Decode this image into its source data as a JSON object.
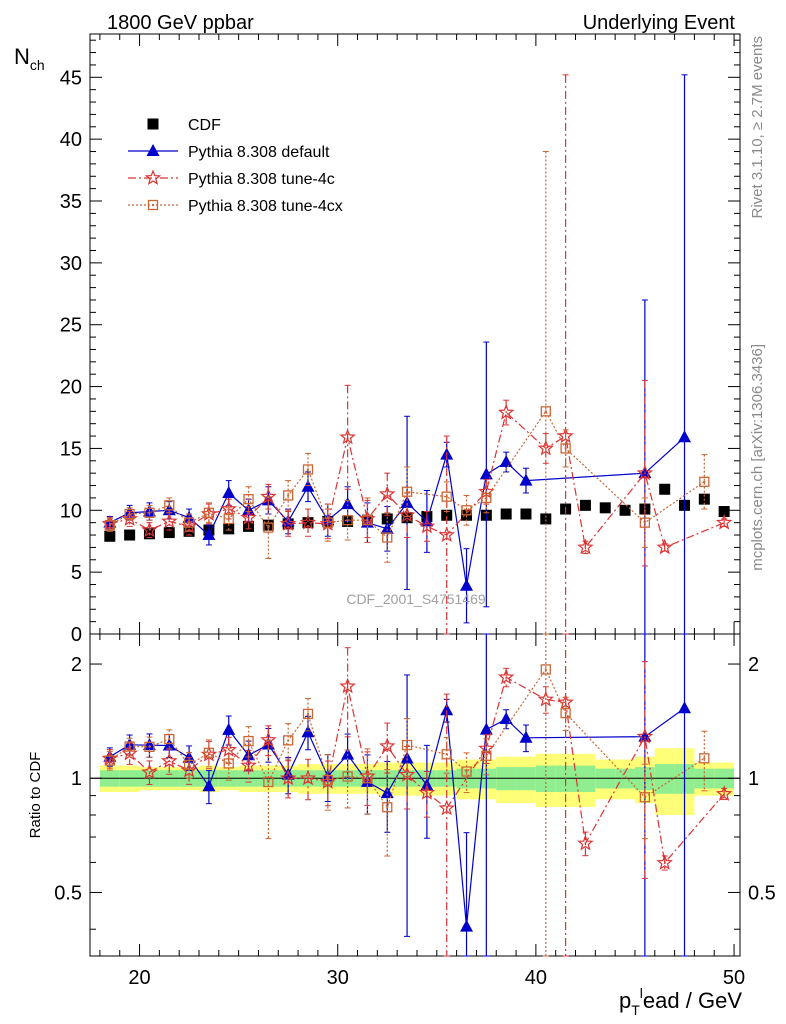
{
  "header": {
    "left": "1800 GeV ppbar",
    "right": "Underlying Event"
  },
  "side_labels": {
    "rivet": "Rivet 3.1.10, ≥ 2.7M events",
    "mcplots": "mcplots.cern.ch [arXiv:1306.3436]"
  },
  "watermark": "CDF_2001_S4751469",
  "colors": {
    "cdf": "#000000",
    "default": "#0000cc",
    "tune4c": "#dd3333",
    "tune4cx": "#cc6633",
    "band_green": "#90ee90",
    "band_yellow": "#ffff77"
  },
  "chart_data": [
    {
      "type": "scatter",
      "panel": "main",
      "ylabel": "N",
      "ylabel_sub": "ch",
      "xlim": [
        17.5,
        50.3
      ],
      "ylim": [
        0,
        48.5
      ],
      "y_ticks": [
        "0",
        "5",
        "10",
        "15",
        "20",
        "25",
        "30",
        "35",
        "40",
        "45"
      ],
      "legend_position": "top-left",
      "series": [
        {
          "name": "CDF",
          "x": [
            18.5,
            19.5,
            20.5,
            21.5,
            22.5,
            23.5,
            24.5,
            25.5,
            26.5,
            27.5,
            28.5,
            29.5,
            30.5,
            31.5,
            32.5,
            33.5,
            34.5,
            35.5,
            36.5,
            37.5,
            38.5,
            39.5,
            40.5,
            41.5,
            42.5,
            43.5,
            44.5,
            45.5,
            46.5,
            47.5,
            48.5,
            49.5
          ],
          "y": [
            7.9,
            8.0,
            8.1,
            8.2,
            8.3,
            8.4,
            8.5,
            8.7,
            8.8,
            8.9,
            9.0,
            9.1,
            9.1,
            9.2,
            9.3,
            9.4,
            9.5,
            9.6,
            9.6,
            9.6,
            9.7,
            9.7,
            9.3,
            10.1,
            10.4,
            10.2,
            10.0,
            10.1,
            11.7,
            10.4,
            10.9,
            9.9
          ]
        },
        {
          "name": "Pythia 8.308 default",
          "x": [
            18.5,
            19.5,
            20.5,
            21.5,
            22.5,
            23.5,
            24.5,
            25.5,
            26.5,
            27.5,
            28.5,
            29.5,
            30.5,
            31.5,
            32.5,
            33.5,
            34.5,
            35.5,
            36.5,
            37.5,
            38.5,
            39.5,
            45.5,
            47.5
          ],
          "y": [
            9.0,
            9.8,
            9.9,
            10.0,
            9.4,
            8.0,
            11.4,
            10.0,
            10.8,
            9.1,
            11.9,
            9.2,
            10.5,
            9.0,
            8.5,
            10.6,
            9.1,
            14.5,
            3.9,
            12.9,
            13.9,
            12.4,
            13.0,
            15.9
          ],
          "err": [
            0.5,
            0.6,
            0.7,
            0.7,
            0.7,
            0.8,
            1.0,
            0.9,
            1.1,
            1.0,
            1.2,
            1.3,
            1.4,
            1.6,
            1.8,
            7.0,
            2.5,
            1.0,
            3.0,
            10.7,
            0.8,
            1.0,
            14.0,
            29.3
          ]
        },
        {
          "name": "Pythia 8.308 tune-4c",
          "x": [
            18.5,
            19.5,
            20.5,
            21.5,
            22.5,
            23.5,
            24.5,
            25.5,
            26.5,
            27.5,
            28.5,
            29.5,
            30.5,
            31.5,
            32.5,
            33.5,
            34.5,
            35.5,
            37.5,
            38.5,
            40.5,
            41.5,
            42.5,
            45.5,
            46.5,
            49.5
          ],
          "y": [
            8.9,
            9.3,
            8.4,
            9.1,
            8.7,
            9.7,
            10.1,
            9.4,
            11.1,
            8.9,
            9.0,
            8.9,
            15.9,
            9.3,
            11.3,
            9.6,
            8.7,
            8.0,
            11.5,
            17.9,
            15.0,
            16.0,
            7.0,
            13.0,
            7.0,
            9.0
          ],
          "err": [
            0.5,
            0.6,
            0.6,
            0.7,
            0.7,
            0.8,
            0.8,
            0.9,
            1.0,
            1.0,
            1.1,
            1.2,
            4.2,
            1.5,
            1.7,
            1.8,
            1.2,
            8.0,
            1.0,
            1.0,
            1.2,
            29.2,
            0.5,
            7.5,
            0.3,
            0.3
          ]
        },
        {
          "name": "Pythia 8.308 tune-4cx",
          "x": [
            18.5,
            19.5,
            20.5,
            21.5,
            22.5,
            23.5,
            24.5,
            25.5,
            26.5,
            27.5,
            28.5,
            29.5,
            30.5,
            31.5,
            32.5,
            33.5,
            35.5,
            36.5,
            37.5,
            40.5,
            41.5,
            45.5,
            48.5
          ],
          "y": [
            8.8,
            9.7,
            9.8,
            10.4,
            9.0,
            9.8,
            9.3,
            10.9,
            8.6,
            11.2,
            13.3,
            9.0,
            9.2,
            9.2,
            7.8,
            11.5,
            11.1,
            10.0,
            11.0,
            18.0,
            15.0,
            9.0,
            12.3
          ],
          "err": [
            0.5,
            0.5,
            0.6,
            0.6,
            0.7,
            0.8,
            0.9,
            1.0,
            2.5,
            1.2,
            1.3,
            1.5,
            1.6,
            1.8,
            2.0,
            2.0,
            1.2,
            1.2,
            1.2,
            21.0,
            1.5,
            2.0,
            2.2
          ]
        }
      ]
    },
    {
      "type": "scatter",
      "panel": "ratio",
      "ylabel": "Ratio to CDF",
      "xlabel": "ead / GeV",
      "xlabel_prefix": "p",
      "xlabel_sub": "T",
      "xlabel_sup": "l",
      "xlim": [
        17.5,
        50.3
      ],
      "ylim": [
        0.34,
        2.4
      ],
      "scale": "log",
      "x_ticks": [
        "20",
        "30",
        "40",
        "50"
      ],
      "y_ticks": [
        "0.5",
        "1",
        "2"
      ],
      "band_green_halfwidth": [
        0.05,
        0.05,
        0.05,
        0.05,
        0.05,
        0.05,
        0.05,
        0.05,
        0.05,
        0.05,
        0.05,
        0.05,
        0.05,
        0.05,
        0.05,
        0.05,
        0.05,
        0.05,
        0.06,
        0.06,
        0.07,
        0.07,
        0.08,
        0.08,
        0.08,
        0.06,
        0.06,
        0.07,
        0.09,
        0.09,
        0.06,
        0.06
      ],
      "band_yellow_halfwidth": [
        0.08,
        0.08,
        0.07,
        0.07,
        0.07,
        0.08,
        0.07,
        0.08,
        0.08,
        0.08,
        0.09,
        0.09,
        0.09,
        0.09,
        0.1,
        0.1,
        0.1,
        0.1,
        0.12,
        0.12,
        0.14,
        0.14,
        0.16,
        0.16,
        0.16,
        0.12,
        0.12,
        0.14,
        0.2,
        0.2,
        0.1,
        0.1
      ]
    }
  ]
}
